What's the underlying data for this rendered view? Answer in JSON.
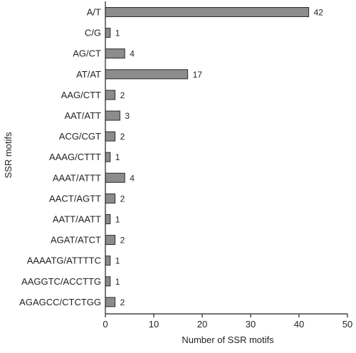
{
  "colors": {
    "bar_fill": "#8c8c8c",
    "bar_stroke": "#2b2b2b",
    "axis": "#231f20",
    "text": "#231f20"
  },
  "chart_data": {
    "type": "bar",
    "orientation": "horizontal",
    "title": "",
    "xlabel": "Number of SSR motifs",
    "ylabel": "SSR motifs",
    "xlim": [
      0,
      50
    ],
    "xticks": [
      0,
      10,
      20,
      30,
      40,
      50
    ],
    "grid": false,
    "legend": "none",
    "categories": [
      "A/T",
      "C/G",
      "AG/CT",
      "AT/AT",
      "AAG/CTT",
      "AAT/ATT",
      "ACG/CGT",
      "AAAG/CTTT",
      "AAAT/ATTT",
      "AACT/AGTT",
      "AATT/AATT",
      "AGAT/ATCT",
      "AAAATG/ATTTTC",
      "AAGGTC/ACCTTG",
      "AGAGCC/CTCTGG"
    ],
    "values": [
      42,
      1,
      4,
      17,
      2,
      3,
      2,
      1,
      4,
      2,
      1,
      2,
      1,
      1,
      2
    ]
  }
}
